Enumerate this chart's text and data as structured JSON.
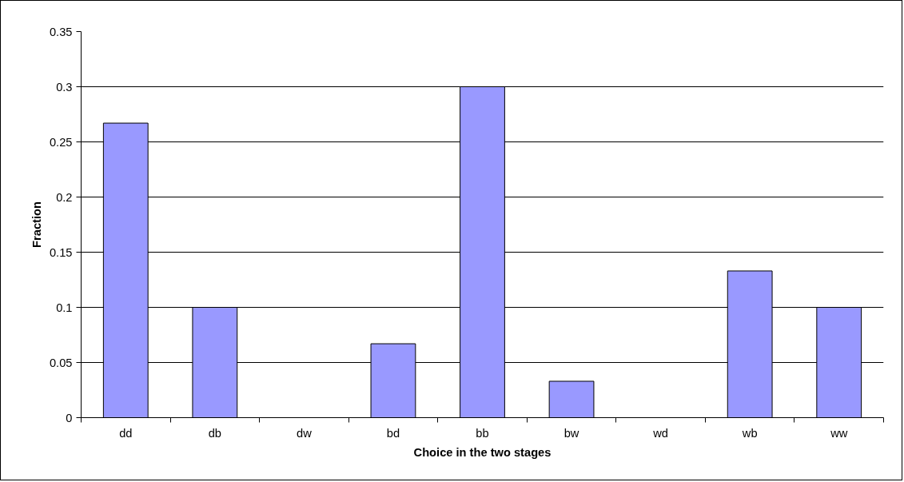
{
  "chart_data": {
    "type": "bar",
    "xlabel": "Choice in the two stages",
    "ylabel": "Fraction",
    "categories": [
      "dd",
      "db",
      "dw",
      "bd",
      "bb",
      "bw",
      "wd",
      "wb",
      "ww"
    ],
    "values": [
      0.267,
      0.1,
      0,
      0.067,
      0.3,
      0.033,
      0,
      0.133,
      0.1
    ],
    "color": "#9999ff",
    "ylim": [
      0,
      0.35
    ],
    "yticks": [
      0,
      0.05,
      0.1,
      0.15,
      0.2,
      0.25,
      0.3,
      0.35
    ],
    "grid": "y"
  }
}
